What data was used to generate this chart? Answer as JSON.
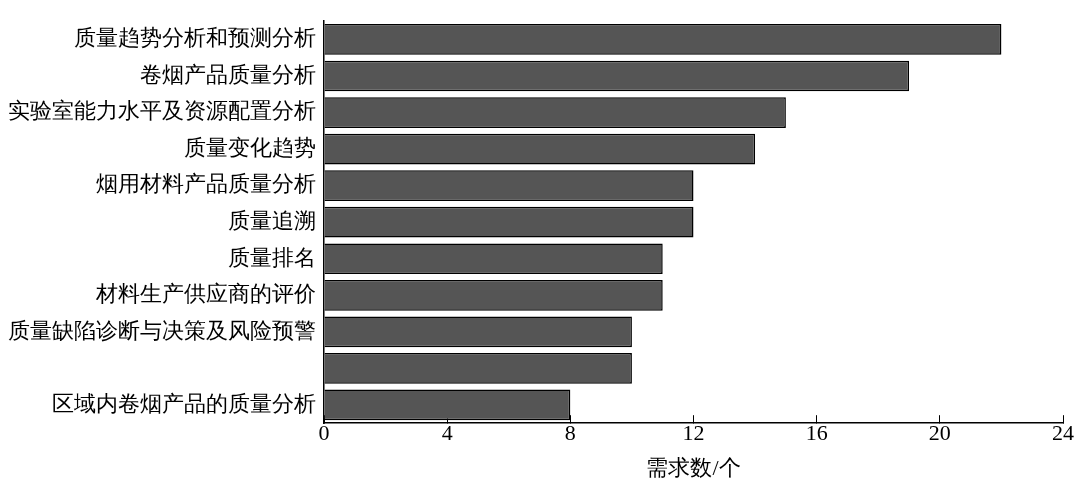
{
  "chart_data": {
    "type": "bar",
    "orientation": "horizontal",
    "xlabel": "需求数/个",
    "categories": [
      "质量趋势分析和预测分析",
      "卷烟产品质量分析",
      "实验室能力水平及资源配置分析",
      "质量变化趋势",
      "烟用材料产品质量分析",
      "质量追溯",
      "质量排名",
      "材料生产供应商的评价",
      "质量缺陷诊断与决策及风险预警",
      null,
      "区域内卷烟产品的质量分析"
    ],
    "values": [
      22,
      19,
      15,
      14,
      12,
      12,
      11,
      11,
      10,
      10,
      8
    ],
    "color": "#555555",
    "xlim": [
      0,
      24
    ],
    "xticks": [
      0,
      4,
      8,
      12,
      16,
      20,
      24
    ],
    "grid": false,
    "legend": false
  }
}
